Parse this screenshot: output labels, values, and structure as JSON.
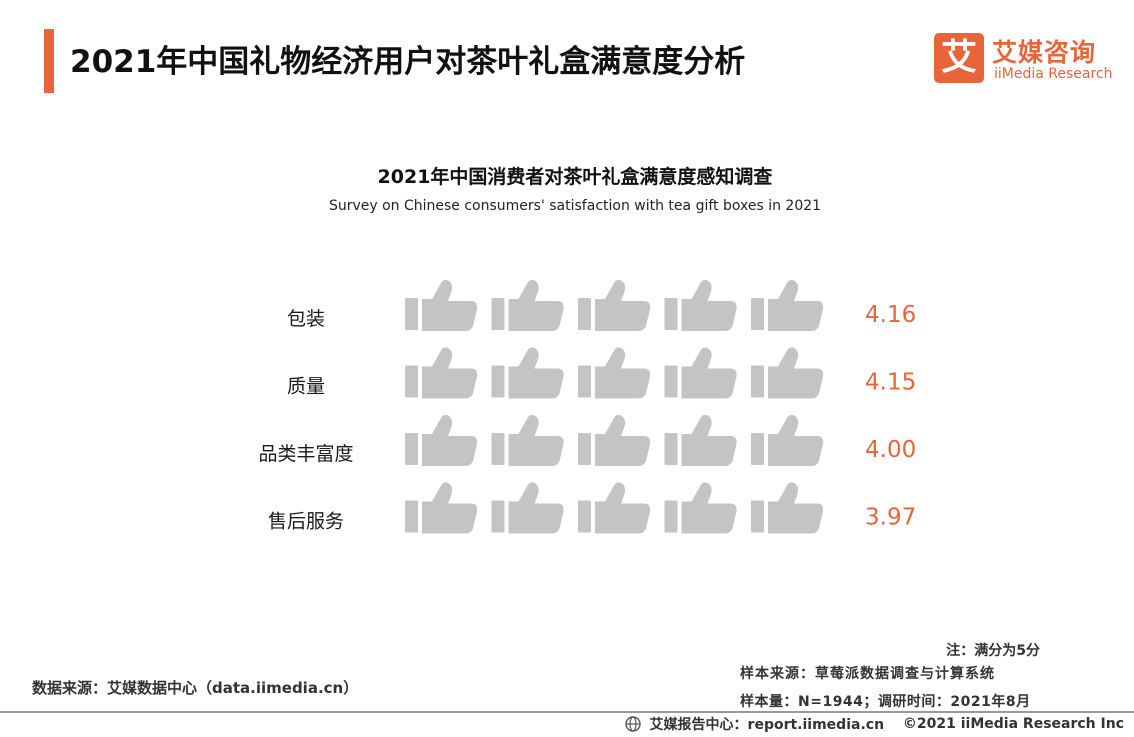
{
  "header": {
    "title": "2021年中国礼物经济用户对茶叶礼盒满意度分析"
  },
  "logo": {
    "glyph": "艾",
    "name_cn": "艾媒咨询",
    "name_en": "iiMedia Research"
  },
  "colors": {
    "accent": "#e8643a",
    "inactive": "#c4c4c4"
  },
  "chart_data": {
    "type": "pictograph",
    "title": "2021年中国消费者对茶叶礼盒满意度感知调查",
    "subtitle": "Survey on Chinese consumers' satisfaction with tea gift boxes in 2021",
    "icon": "thumbs-up-icon",
    "max_score": 5,
    "categories": [
      "包装",
      "质量",
      "品类丰富度",
      "售后服务"
    ],
    "values": [
      4.16,
      4.15,
      4.0,
      3.97
    ],
    "value_labels": [
      "4.16",
      "4.15",
      "4.00",
      "3.97"
    ]
  },
  "notes": {
    "full_score": "注：满分为5分",
    "sample_source": "样本来源：草莓派数据调查与计算系统",
    "sample_size": "样本量：N=1944；调研时间：2021年8月",
    "data_source": "数据来源：艾媒数据中心（data.iimedia.cn）"
  },
  "footer": {
    "center": "艾媒报告中心：report.iimedia.cn",
    "copyright": "©2021  iiMedia Research  Inc"
  }
}
